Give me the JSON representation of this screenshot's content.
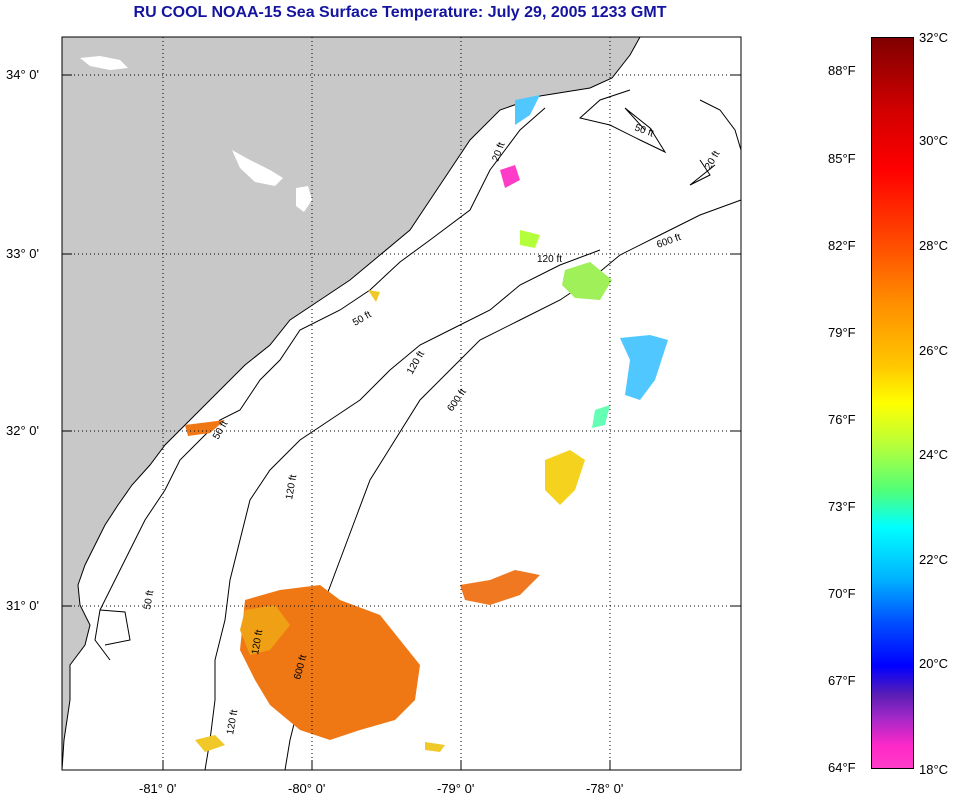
{
  "title": "RU COOL  NOAA-15  Sea Surface Temperature:  July 29, 2005 1233 GMT",
  "map": {
    "lat_labels": [
      "34° 0'",
      "33° 0'",
      "32° 0'",
      "31° 0'"
    ],
    "lon_labels": [
      "-81° 0'",
      "-80° 0'",
      "-79° 0'",
      "-78° 0'"
    ],
    "contour_labels": [
      "50 ft",
      "120 ft",
      "600 ft",
      "20 ft",
      "50 ft",
      "120 ft",
      "600 ft",
      "50 ft",
      "120 ft",
      "600 ft",
      "50 ft",
      "120 ft",
      "120 ft",
      "20 ft"
    ],
    "colors": {
      "land": "#c8c8c8",
      "ocean": "#ffffff",
      "contour": "#000000",
      "title": "#1414a0"
    }
  },
  "colorbar": {
    "fahrenheit": [
      "88°F",
      "85°F",
      "82°F",
      "79°F",
      "76°F",
      "73°F",
      "70°F",
      "67°F",
      "64°F"
    ],
    "celsius": [
      "32°C",
      "30°C",
      "28°C",
      "26°C",
      "24°C",
      "22°C",
      "20°C",
      "18°C"
    ]
  }
}
